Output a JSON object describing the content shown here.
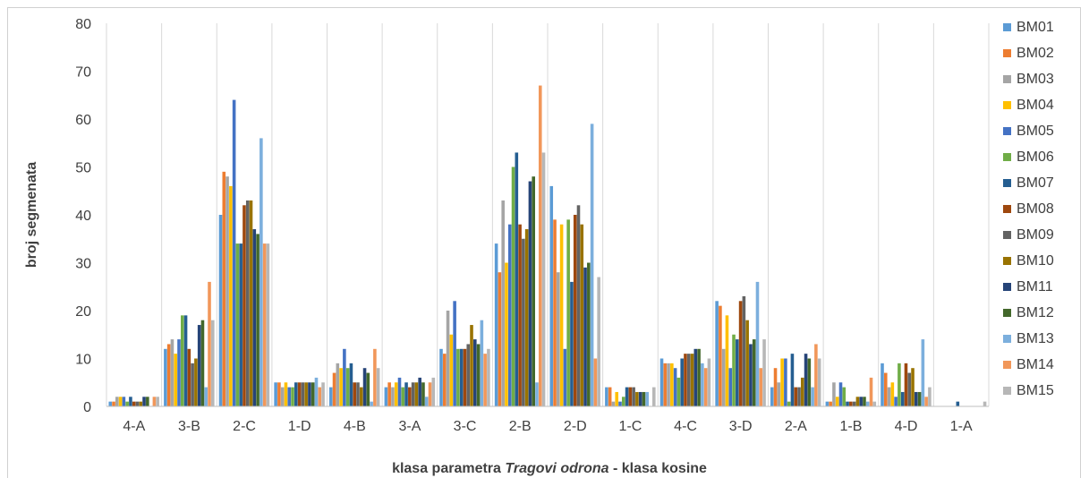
{
  "chart_data": {
    "type": "bar",
    "title": "",
    "ylabel": "broj segmenata",
    "xlabel_parts": [
      {
        "text": "klasa parametra ",
        "italic": false
      },
      {
        "text": "Tragovi odrona",
        "italic": true
      },
      {
        "text": " - klasa kosine",
        "italic": false
      }
    ],
    "ylim": [
      0,
      80
    ],
    "yticks": [
      0,
      10,
      20,
      30,
      40,
      50,
      60,
      70,
      80
    ],
    "grid": "vertical",
    "legend_position": "right",
    "categories": [
      "4-A",
      "3-B",
      "2-C",
      "1-D",
      "4-B",
      "3-A",
      "3-C",
      "2-B",
      "2-D",
      "1-C",
      "4-C",
      "3-D",
      "2-A",
      "1-B",
      "4-D",
      "1-A"
    ],
    "series": [
      {
        "name": "BM01",
        "color": "#5B9BD5",
        "values": [
          1,
          12,
          40,
          5,
          4,
          4,
          12,
          34,
          46,
          4,
          10,
          22,
          4,
          1,
          9,
          0
        ]
      },
      {
        "name": "BM02",
        "color": "#ED7D31",
        "values": [
          1,
          13,
          49,
          5,
          7,
          5,
          11,
          28,
          39,
          4,
          9,
          21,
          8,
          1,
          7,
          0
        ]
      },
      {
        "name": "BM03",
        "color": "#A5A5A5",
        "values": [
          2,
          14,
          48,
          4,
          9,
          4,
          20,
          43,
          28,
          1,
          9,
          12,
          5,
          5,
          4,
          0
        ]
      },
      {
        "name": "BM04",
        "color": "#FFC000",
        "values": [
          2,
          11,
          46,
          5,
          8,
          5,
          15,
          30,
          38,
          3,
          9,
          19,
          10,
          2,
          5,
          0
        ]
      },
      {
        "name": "BM05",
        "color": "#4472C4",
        "values": [
          2,
          14,
          64,
          4,
          12,
          6,
          22,
          38,
          12,
          1,
          8,
          8,
          10,
          5,
          2,
          0
        ]
      },
      {
        "name": "BM06",
        "color": "#70AD47",
        "values": [
          1,
          19,
          34,
          4,
          8,
          4,
          12,
          50,
          39,
          2,
          6,
          15,
          1,
          4,
          9,
          0
        ]
      },
      {
        "name": "BM07",
        "color": "#255E91",
        "values": [
          2,
          19,
          34,
          5,
          9,
          5,
          12,
          53,
          26,
          4,
          10,
          14,
          11,
          1,
          3,
          1
        ]
      },
      {
        "name": "BM08",
        "color": "#9E480E",
        "values": [
          1,
          12,
          42,
          5,
          5,
          4,
          12,
          38,
          40,
          4,
          11,
          22,
          4,
          1,
          9,
          0
        ]
      },
      {
        "name": "BM09",
        "color": "#636363",
        "values": [
          1,
          9,
          43,
          5,
          5,
          5,
          13,
          35,
          42,
          4,
          11,
          23,
          4,
          1,
          7,
          0
        ]
      },
      {
        "name": "BM10",
        "color": "#997300",
        "values": [
          1,
          10,
          43,
          5,
          4,
          5,
          17,
          37,
          38,
          3,
          11,
          18,
          6,
          2,
          8,
          0
        ]
      },
      {
        "name": "BM11",
        "color": "#264478",
        "values": [
          2,
          17,
          37,
          5,
          8,
          6,
          14,
          47,
          29,
          3,
          12,
          13,
          11,
          2,
          3,
          0
        ]
      },
      {
        "name": "BM12",
        "color": "#43682B",
        "values": [
          2,
          18,
          36,
          5,
          7,
          5,
          13,
          48,
          30,
          3,
          12,
          14,
          10,
          2,
          3,
          0
        ]
      },
      {
        "name": "BM13",
        "color": "#7CAFDD",
        "values": [
          0,
          4,
          56,
          6,
          1,
          2,
          18,
          5,
          59,
          3,
          9,
          26,
          4,
          1,
          14,
          0
        ]
      },
      {
        "name": "BM14",
        "color": "#F1975A",
        "values": [
          2,
          26,
          34,
          4,
          12,
          5,
          11,
          67,
          10,
          0,
          8,
          8,
          13,
          6,
          2,
          0
        ]
      },
      {
        "name": "BM15",
        "color": "#B7B7B7",
        "values": [
          2,
          18,
          34,
          5,
          8,
          6,
          12,
          53,
          27,
          4,
          10,
          14,
          10,
          1,
          4,
          1
        ]
      }
    ]
  }
}
